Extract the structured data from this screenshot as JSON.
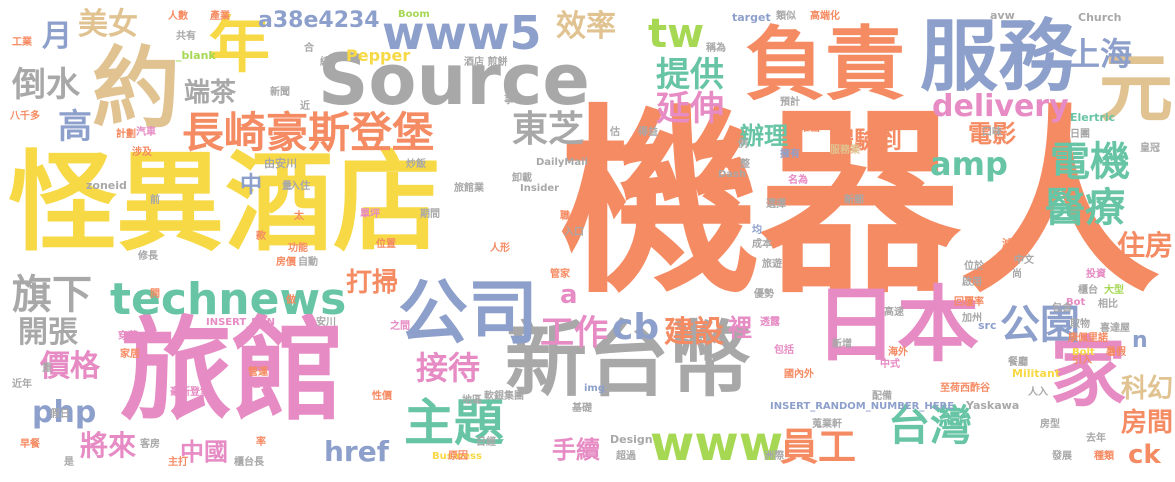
{
  "cloud": {
    "colors": {
      "orange": "#f58b63",
      "yellow": "#f7d845",
      "blue": "#8d9fcb",
      "pink": "#e68bc3",
      "tan": "#e0c391",
      "gray": "#a8a8a8",
      "green": "#a6d854",
      "teal": "#67c4a5"
    },
    "words": [
      {
        "text": "機器人",
        "color": "orange"
      },
      {
        "text": "怪異",
        "color": "yellow"
      },
      {
        "text": "酒店",
        "color": "yellow"
      },
      {
        "text": "旅館",
        "color": "pink"
      },
      {
        "text": "Source",
        "color": "gray"
      },
      {
        "text": "負責",
        "color": "orange"
      },
      {
        "text": "服務",
        "color": "blue"
      },
      {
        "text": "新台幣",
        "color": "gray"
      },
      {
        "text": "日本",
        "color": "pink"
      },
      {
        "text": "約",
        "color": "tan"
      },
      {
        "text": "年",
        "color": "yellow"
      },
      {
        "text": "元",
        "color": "tan"
      },
      {
        "text": "家",
        "color": "pink"
      },
      {
        "text": "公司",
        "color": "blue"
      },
      {
        "text": "長崎豪斯登堡",
        "color": "orange"
      },
      {
        "text": "technews",
        "color": "teal"
      },
      {
        "text": "www5",
        "color": "blue"
      },
      {
        "text": "www",
        "color": "green"
      },
      {
        "text": "主題",
        "color": "teal"
      },
      {
        "text": "tw",
        "color": "green"
      },
      {
        "text": "效率",
        "color": "tan"
      },
      {
        "text": "delivery",
        "color": "pink"
      },
      {
        "text": "公園",
        "color": "blue"
      },
      {
        "text": "台灣",
        "color": "teal"
      },
      {
        "text": "員工",
        "color": "orange"
      },
      {
        "text": "電機",
        "color": "teal"
      },
      {
        "text": "醫療",
        "color": "teal"
      },
      {
        "text": "amp",
        "color": "teal"
      },
      {
        "text": "延伸",
        "color": "pink"
      },
      {
        "text": "提供",
        "color": "teal"
      },
      {
        "text": "上海",
        "color": "blue"
      },
      {
        "text": "東芝",
        "color": "gray"
      },
      {
        "text": "美女",
        "color": "tan"
      },
      {
        "text": "a38e4234",
        "color": "blue"
      },
      {
        "text": "月",
        "color": "blue"
      },
      {
        "text": "倒水",
        "color": "gray"
      },
      {
        "text": "端茶",
        "color": "gray"
      },
      {
        "text": "高",
        "color": "blue"
      },
      {
        "text": "旗下",
        "color": "gray"
      },
      {
        "text": "開張",
        "color": "gray"
      },
      {
        "text": "價格",
        "color": "pink"
      },
      {
        "text": "php",
        "color": "blue"
      },
      {
        "text": "將來",
        "color": "pink"
      },
      {
        "text": "中國",
        "color": "pink"
      },
      {
        "text": "href",
        "color": "blue"
      },
      {
        "text": "接待",
        "color": "pink"
      },
      {
        "text": "工作",
        "color": "pink"
      },
      {
        "text": "cb",
        "color": "blue"
      },
      {
        "text": "建設",
        "color": "orange"
      },
      {
        "text": "裡",
        "color": "pink"
      },
      {
        "text": "打掃",
        "color": "orange"
      },
      {
        "text": "手續",
        "color": "pink"
      },
      {
        "text": "辦理",
        "color": "teal"
      },
      {
        "text": "體驗到",
        "color": "orange"
      },
      {
        "text": "電影",
        "color": "orange"
      },
      {
        "text": "科幻",
        "color": "tan"
      },
      {
        "text": "住房",
        "color": "orange"
      },
      {
        "text": "房間",
        "color": "orange"
      },
      {
        "text": "ck",
        "color": "orange"
      },
      {
        "text": "n",
        "color": "blue"
      },
      {
        "text": "a",
        "color": "pink"
      },
      {
        "text": "中",
        "color": "blue"
      },
      {
        "text": "_blank",
        "color": "green"
      },
      {
        "text": "Pepper",
        "color": "yellow"
      },
      {
        "text": "Boom",
        "color": "green"
      },
      {
        "text": "target",
        "color": "blue"
      },
      {
        "text": "avw",
        "color": "gray"
      },
      {
        "text": "Church",
        "color": "gray"
      },
      {
        "text": "Elertric",
        "color": "teal"
      },
      {
        "text": "DailyMail",
        "color": "gray"
      },
      {
        "text": "Insider",
        "color": "gray"
      },
      {
        "text": "zoneid",
        "color": "gray"
      },
      {
        "text": "INSERT_RANDOM_NUMBER_HERE",
        "color": "blue"
      },
      {
        "text": "INSERT_RAN",
        "color": "pink"
      },
      {
        "text": "Yaskawa",
        "color": "gray"
      },
      {
        "text": "Militant",
        "color": "yellow"
      },
      {
        "text": "Design",
        "color": "gray"
      },
      {
        "text": "Business",
        "color": "yellow"
      },
      {
        "text": "Bot",
        "color": "pink"
      },
      {
        "text": "src",
        "color": "blue"
      },
      {
        "text": "img",
        "color": "blue"
      },
      {
        "text": "Dash",
        "color": "gray"
      },
      {
        "text": "由安川",
        "color": "gray"
      },
      {
        "text": "軟銀集團",
        "color": "gray"
      },
      {
        "text": "皇冠",
        "color": "gray"
      },
      {
        "text": "高端化",
        "color": "orange"
      },
      {
        "text": "人數",
        "color": "orange"
      },
      {
        "text": "產業",
        "color": "orange"
      },
      {
        "text": "工業",
        "color": "orange"
      },
      {
        "text": "八千多",
        "color": "orange"
      },
      {
        "text": "旅館業",
        "color": "gray"
      },
      {
        "text": "豪斯登堡",
        "color": "pink"
      },
      {
        "text": "人形",
        "color": "orange"
      },
      {
        "text": "汽車",
        "color": "pink"
      },
      {
        "text": "安川",
        "color": "gray"
      },
      {
        "text": "新郵",
        "color": "gray"
      },
      {
        "text": "服務業",
        "color": "tan"
      },
      {
        "text": "入住",
        "color": "gray"
      },
      {
        "text": "前",
        "color": "gray"
      },
      {
        "text": "自動",
        "color": "gray"
      },
      {
        "text": "功能",
        "color": "orange"
      },
      {
        "text": "房價",
        "color": "orange"
      },
      {
        "text": "人入",
        "color": "gray"
      },
      {
        "text": "均",
        "color": "blue"
      },
      {
        "text": "地區",
        "color": "gray"
      },
      {
        "text": "原因",
        "color": "orange"
      },
      {
        "text": "日經",
        "color": "gray"
      },
      {
        "text": "超過",
        "color": "gray"
      },
      {
        "text": "洲際",
        "color": "gray"
      },
      {
        "text": "發展",
        "color": "gray"
      },
      {
        "text": "種類",
        "color": "orange"
      },
      {
        "text": "去年",
        "color": "gray"
      },
      {
        "text": "房型",
        "color": "gray"
      },
      {
        "text": "至荷西酢谷",
        "color": "orange"
      },
      {
        "text": "國內外",
        "color": "orange"
      },
      {
        "text": "包括",
        "color": "pink"
      },
      {
        "text": "海外",
        "color": "orange"
      },
      {
        "text": "新增",
        "color": "gray"
      },
      {
        "text": "高速",
        "color": "gray"
      },
      {
        "text": "餐廳",
        "color": "gray"
      },
      {
        "text": "暑假",
        "color": "orange"
      },
      {
        "text": "引入",
        "color": "orange"
      },
      {
        "text": "中文",
        "color": "gray"
      },
      {
        "text": "投資",
        "color": "pink"
      },
      {
        "text": "大型",
        "color": "green"
      },
      {
        "text": "包含",
        "color": "gray"
      },
      {
        "text": "相比",
        "color": "gray"
      },
      {
        "text": "減少",
        "color": "orange"
      },
      {
        "text": "啟用",
        "color": "gray"
      },
      {
        "text": "回覆率",
        "color": "orange"
      },
      {
        "text": "不錯",
        "color": "orange"
      },
      {
        "text": "加州",
        "color": "gray"
      },
      {
        "text": "取物",
        "color": "gray"
      },
      {
        "text": "櫃台",
        "color": "gray"
      },
      {
        "text": "旅遊",
        "color": "gray"
      },
      {
        "text": "優勢",
        "color": "gray"
      },
      {
        "text": "透露",
        "color": "pink"
      },
      {
        "text": "選擇",
        "color": "gray"
      },
      {
        "text": "推出",
        "color": "orange"
      },
      {
        "text": "預計",
        "color": "gray"
      },
      {
        "text": "類似",
        "color": "gray"
      },
      {
        "text": "稱為",
        "color": "gray"
      },
      {
        "text": "領域",
        "color": "orange"
      },
      {
        "text": "經營",
        "color": "orange"
      },
      {
        "text": "得益",
        "color": "gray"
      },
      {
        "text": "期間",
        "color": "gray"
      },
      {
        "text": "位置",
        "color": "orange"
      },
      {
        "text": "名為",
        "color": "pink"
      },
      {
        "text": "入口",
        "color": "gray"
      },
      {
        "text": "成本",
        "color": "gray"
      },
      {
        "text": "擁有",
        "color": "blue"
      },
      {
        "text": "單坪",
        "color": "pink"
      },
      {
        "text": "職位",
        "color": "orange"
      },
      {
        "text": "管家",
        "color": "orange"
      },
      {
        "text": "基礎",
        "color": "gray"
      },
      {
        "text": "性價",
        "color": "orange"
      },
      {
        "text": "之間",
        "color": "pink"
      },
      {
        "text": "計劃",
        "color": "orange"
      },
      {
        "text": "涉及",
        "color": "orange"
      },
      {
        "text": "共有",
        "color": "gray"
      },
      {
        "text": "新聞",
        "color": "gray"
      },
      {
        "text": "近年",
        "color": "gray"
      },
      {
        "text": "假日",
        "color": "gray"
      },
      {
        "text": "早餐",
        "color": "orange"
      },
      {
        "text": "客房",
        "color": "gray"
      },
      {
        "text": "主打",
        "color": "orange"
      },
      {
        "text": "櫃台長",
        "color": "gray"
      },
      {
        "text": "營運",
        "color": "orange"
      },
      {
        "text": "旺季",
        "color": "pink"
      },
      {
        "text": "修長",
        "color": "gray"
      },
      {
        "text": "穿著",
        "color": "pink"
      },
      {
        "text": "家居",
        "color": "orange"
      },
      {
        "text": "康佩里諾",
        "color": "orange"
      },
      {
        "text": "喜達屋",
        "color": "gray"
      },
      {
        "text": "蒐業軒",
        "color": "gray"
      },
      {
        "text": "配備",
        "color": "gray"
      },
      {
        "text": "中式",
        "color": "pink"
      },
      {
        "text": "卸載",
        "color": "gray"
      },
      {
        "text": "位於",
        "color": "gray"
      },
      {
        "text": "口味",
        "color": "gray"
      },
      {
        "text": "日團",
        "color": "gray"
      },
      {
        "text": "Bolt",
        "color": "yellow"
      },
      {
        "text": "炒飯",
        "color": "gray"
      },
      {
        "text": "估",
        "color": "gray"
      },
      {
        "text": "整",
        "color": "gray"
      },
      {
        "text": "例",
        "color": "gray"
      },
      {
        "text": "傳",
        "color": "orange"
      },
      {
        "text": "近",
        "color": "gray"
      },
      {
        "text": "事",
        "color": "gray"
      },
      {
        "text": "太",
        "color": "orange"
      },
      {
        "text": "率",
        "color": "orange"
      },
      {
        "text": "是",
        "color": "gray"
      },
      {
        "text": "重",
        "color": "gray"
      },
      {
        "text": "開",
        "color": "orange"
      },
      {
        "text": "合",
        "color": "gray"
      },
      {
        "text": "總",
        "color": "gray"
      },
      {
        "text": "款",
        "color": "orange"
      },
      {
        "text": "尚",
        "color": "gray"
      },
      {
        "text": "做",
        "color": "orange"
      },
      {
        "text": "量",
        "color": "gray"
      },
      {
        "text": "酒店 煎餅",
        "color": "gray"
      },
      {
        "text": "台",
        "color": "gray"
      },
      {
        "text": "服",
        "color": "gray"
      },
      {
        "text": "協調",
        "color": "gray"
      }
    ]
  }
}
